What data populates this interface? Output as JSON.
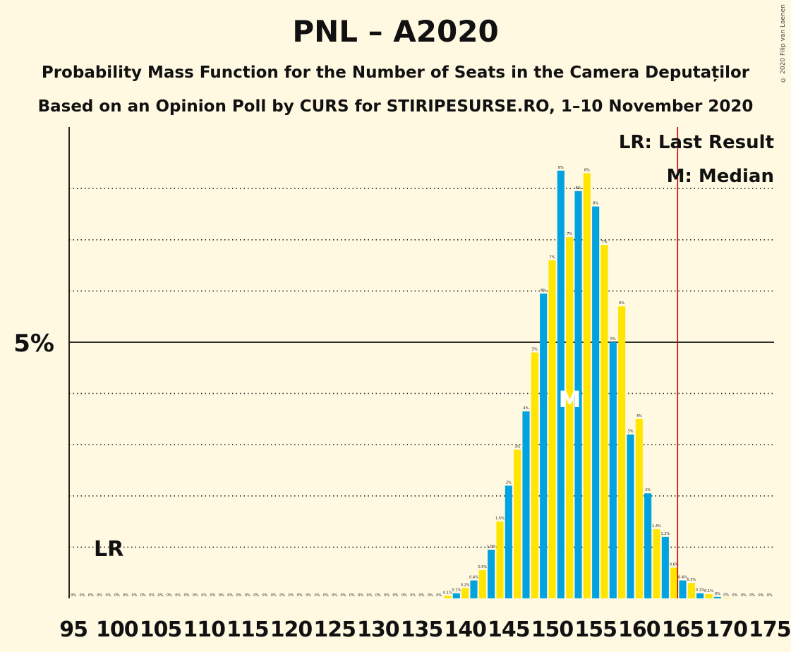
{
  "title": "PNL – A2020",
  "subtitle1": "Probability Mass Function for the Number of Seats in the Camera Deputaților",
  "subtitle2": "Based on an Opinion Poll by CURS for STIRIPESURSE.RO, 1–10 November 2020",
  "copyright": "© 2020 Filip van Laenen",
  "legend": {
    "lr": "LR: Last Result",
    "median": "M: Median"
  },
  "colors": {
    "background": "#FFF9E2",
    "blue": "#00A3E0",
    "yellow": "#FFE500",
    "last_result_line": "#C00000"
  },
  "chart_data": {
    "type": "bar",
    "x": [
      95,
      96,
      97,
      98,
      99,
      100,
      101,
      102,
      103,
      104,
      105,
      106,
      107,
      108,
      109,
      110,
      111,
      112,
      113,
      114,
      115,
      116,
      117,
      118,
      119,
      120,
      121,
      122,
      123,
      124,
      125,
      126,
      127,
      128,
      129,
      130,
      131,
      132,
      133,
      134,
      135,
      136,
      137,
      138,
      139,
      140,
      141,
      142,
      143,
      144,
      145,
      146,
      147,
      148,
      149,
      150,
      151,
      152,
      153,
      154,
      155,
      156,
      157,
      158,
      159,
      160,
      161,
      162,
      163,
      164,
      165,
      166,
      167,
      168,
      169,
      170,
      171,
      172,
      173,
      174,
      175
    ],
    "values": [
      0,
      0,
      0,
      0,
      0,
      0,
      0,
      0,
      0,
      0,
      0,
      0,
      0,
      0,
      0,
      0,
      0,
      0,
      0,
      0,
      0,
      0,
      0,
      0,
      0,
      0,
      0,
      0,
      0,
      0,
      0,
      0,
      0,
      0,
      0,
      0,
      0,
      0,
      0,
      0,
      0,
      0,
      0,
      0.05,
      0.1,
      0.2,
      0.35,
      0.55,
      0.95,
      1.5,
      2.2,
      2.9,
      3.65,
      4.8,
      5.95,
      6.6,
      8.35,
      7.05,
      7.95,
      8.3,
      7.65,
      6.9,
      5.0,
      5.7,
      3.2,
      3.5,
      2.05,
      1.35,
      1.2,
      0.6,
      0.35,
      0.3,
      0.1,
      0.08,
      0.03,
      0.01,
      0,
      0,
      0,
      0,
      0
    ],
    "labels": [
      "0%",
      "0%",
      "0%",
      "0%",
      "0%",
      "0%",
      "0%",
      "0%",
      "0%",
      "0%",
      "0%",
      "0%",
      "0%",
      "0%",
      "0%",
      "0%",
      "0%",
      "0%",
      "0%",
      "0%",
      "0%",
      "0%",
      "0%",
      "0%",
      "0%",
      "0%",
      "0%",
      "0%",
      "0%",
      "0%",
      "0%",
      "0%",
      "0%",
      "0%",
      "0%",
      "0%",
      "0%",
      "0%",
      "0%",
      "0%",
      "0%",
      "0%",
      "0%",
      "0.1%",
      "0.1%",
      "0.2%",
      "0.4%",
      "0.5%",
      "1.0%",
      "1.5%",
      "2%",
      "3%",
      "4%",
      "5%",
      "6%",
      "7%",
      "8%",
      "7%",
      "8%",
      "8%",
      "8%",
      "7%",
      "5%",
      "6%",
      "3%",
      "4%",
      "2%",
      "1.4%",
      "1.2%",
      "0.6%",
      "0.4%",
      "0.3%",
      "0.1%",
      "0.1%",
      "0%",
      "0%",
      "0%",
      "0%",
      "0%",
      "0%",
      "0%"
    ],
    "x_tick_labels": [
      "95",
      "100",
      "105",
      "110",
      "115",
      "120",
      "125",
      "130",
      "135",
      "140",
      "145",
      "150",
      "155",
      "160",
      "165",
      "170",
      "175"
    ],
    "x_tick_values": [
      95,
      100,
      105,
      110,
      115,
      120,
      125,
      130,
      135,
      140,
      145,
      150,
      155,
      160,
      165,
      170,
      175
    ],
    "y_tick_label": "5%",
    "y_tick_value": 5,
    "ylim": [
      0,
      9.2
    ],
    "minor_gridlines": [
      1,
      2,
      3,
      4,
      6,
      7,
      8
    ],
    "last_result_seat": 165,
    "last_result_label": "LR",
    "median_seat": 153,
    "median_label": "M"
  }
}
